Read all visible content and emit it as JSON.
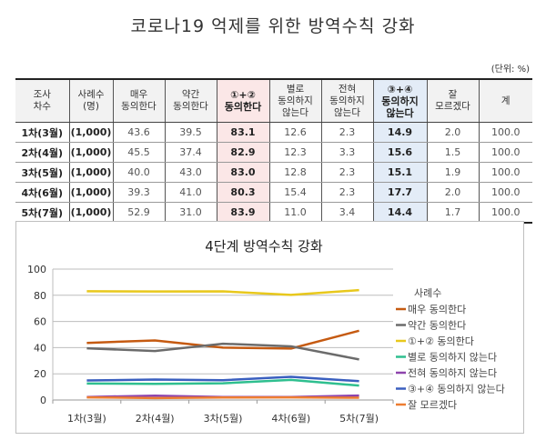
{
  "title": "코로나19 억제를 위한 방역수칙 강화",
  "unit_note": "(단위: %)",
  "table": {
    "headers": [
      [
        "조사",
        "차수"
      ],
      [
        "사례수",
        "(명)"
      ],
      [
        "매우",
        "동의한다"
      ],
      [
        "약간",
        "동의한다"
      ],
      [
        "①+②",
        "동의한다"
      ],
      [
        "별로",
        "동의하지",
        "않는다"
      ],
      [
        "전혀",
        "동의하지",
        "않는다"
      ],
      [
        "③+④",
        "동의하지",
        "않는다"
      ],
      [
        "잘",
        "모르겠다"
      ],
      [
        "계"
      ]
    ],
    "rows": [
      [
        "1차(3월)",
        "(1,000)",
        "43.6",
        "39.5",
        "83.1",
        "12.6",
        "2.3",
        "14.9",
        "2.0",
        "100.0"
      ],
      [
        "2차(4월)",
        "(1,000)",
        "45.5",
        "37.4",
        "82.9",
        "12.3",
        "3.3",
        "15.6",
        "1.5",
        "100.0"
      ],
      [
        "3차(5월)",
        "(1,000)",
        "40.0",
        "43.0",
        "83.0",
        "12.8",
        "2.3",
        "15.1",
        "1.9",
        "100.0"
      ],
      [
        "4차(6월)",
        "(1,000)",
        "39.3",
        "41.0",
        "80.3",
        "15.4",
        "2.3",
        "17.7",
        "2.0",
        "100.0"
      ],
      [
        "5차(7월)",
        "(1,000)",
        "52.9",
        "31.0",
        "83.9",
        "11.0",
        "3.4",
        "14.4",
        "1.7",
        "100.0"
      ]
    ],
    "highlight_colors": {
      "agree_sum": "#fbe7e7",
      "disagree_sum": "#e3ecf7"
    }
  },
  "chart_data": {
    "type": "line",
    "title": "4단계 방역수칙 강화",
    "xlabel": "",
    "ylabel": "",
    "categories": [
      "1차(3월)",
      "2차(4월)",
      "3차(5월)",
      "4차(6월)",
      "5차(7월)"
    ],
    "yticks": [
      "0",
      "20",
      "40",
      "60",
      "80",
      "100"
    ],
    "ylim": [
      0,
      100
    ],
    "grid": true,
    "legend_position": "right",
    "legend_title": "사례수",
    "series": [
      {
        "name": "매우 동의한다",
        "color": "#c55a11",
        "values": [
          43.6,
          45.5,
          40.0,
          39.3,
          52.9
        ]
      },
      {
        "name": "약간 동의한다",
        "color": "#6b6b6b",
        "values": [
          39.5,
          37.4,
          43.0,
          41.0,
          31.0
        ]
      },
      {
        "name": "①+② 동의한다",
        "color": "#e8c81c",
        "values": [
          83.1,
          82.9,
          83.0,
          80.3,
          83.9
        ]
      },
      {
        "name": "별로 동의하지 않는다",
        "color": "#2fbf8f",
        "values": [
          12.6,
          12.3,
          12.8,
          15.4,
          11.0
        ]
      },
      {
        "name": "전혀 동의하지 않는다",
        "color": "#8e44ad",
        "values": [
          2.3,
          3.3,
          2.3,
          2.3,
          3.4
        ]
      },
      {
        "name": "③+④ 동의하지 않는다",
        "color": "#3a5fbf",
        "values": [
          14.9,
          15.6,
          15.1,
          17.7,
          14.4
        ]
      },
      {
        "name": "잘 모르겠다",
        "color": "#ed7d31",
        "values": [
          2.0,
          1.5,
          1.9,
          2.0,
          1.7
        ]
      }
    ]
  }
}
